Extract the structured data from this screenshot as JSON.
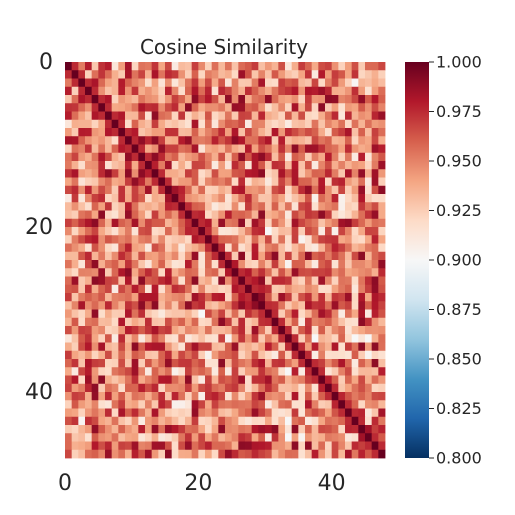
{
  "chart_data": {
    "type": "heatmap",
    "title": "Cosine Similarity",
    "xlabel": "",
    "ylabel": "",
    "n": 48,
    "x_ticks": [
      0,
      20,
      40
    ],
    "y_ticks": [
      0,
      20,
      40
    ],
    "x_tick_labels": [
      "0",
      "20",
      "40"
    ],
    "y_tick_labels": [
      "0",
      "20",
      "40"
    ],
    "colormap": "RdBu_r",
    "vmin": 0.8,
    "vmax": 1.0,
    "colorbar_ticks": [
      0.8,
      0.825,
      0.85,
      0.875,
      0.9,
      0.925,
      0.95,
      0.975,
      1.0
    ],
    "colorbar_labels": [
      "0.800",
      "0.825",
      "0.850",
      "0.875",
      "0.900",
      "0.925",
      "0.950",
      "0.975",
      "1.000"
    ],
    "diagonal_value": 1.0,
    "typical_range": [
      0.9,
      0.99
    ],
    "grid": false
  },
  "colors": {
    "low": "#053061",
    "mid": "#f7f7f7",
    "high": "#67001f",
    "text": "#262626"
  }
}
